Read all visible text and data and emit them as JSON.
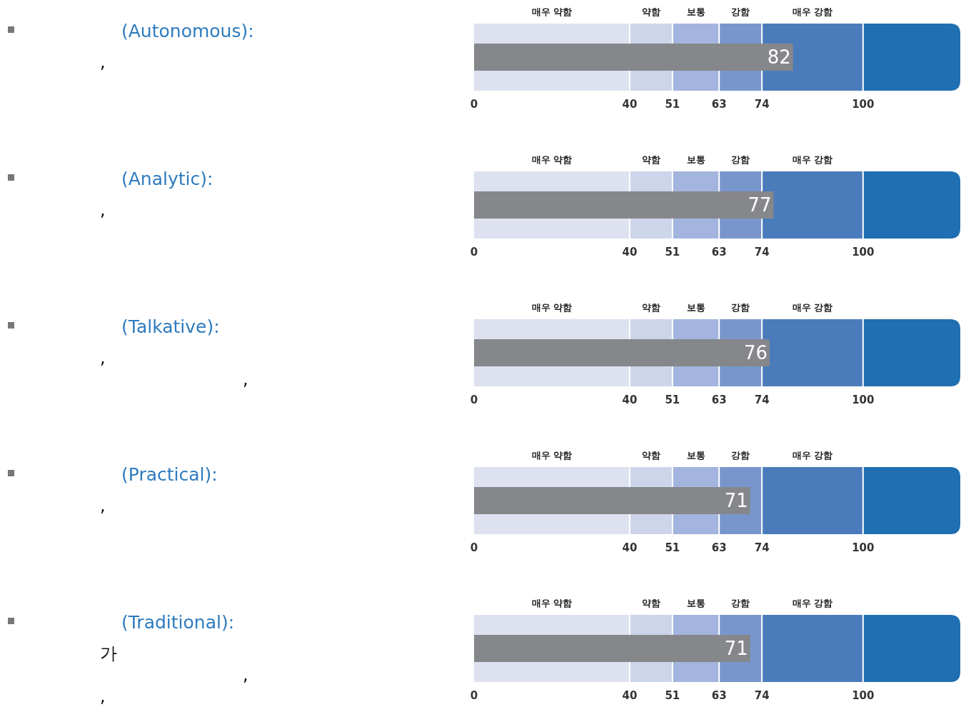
{
  "chart_data": [
    {
      "type": "bar",
      "orientation": "horizontal",
      "grid": "x",
      "annotations": [
        "(Autonomous):",
        ","
      ],
      "categories": [
        null
      ],
      "values": [
        82
      ],
      "color": "#85878b",
      "data_labels": true,
      "xlim": [
        0,
        125
      ],
      "xticks": [
        0,
        40,
        51,
        63,
        74,
        100
      ],
      "bands": [
        {
          "axis": "x",
          "from": 0,
          "to": 40,
          "label": "매우 약함",
          "color": "#dde1f0"
        },
        {
          "axis": "x",
          "from": 40,
          "to": 51,
          "label": "약함",
          "color": "#ccd5ea"
        },
        {
          "axis": "x",
          "from": 51,
          "to": 63,
          "label": "보통",
          "color": "#a3b5de"
        },
        {
          "axis": "x",
          "from": 63,
          "to": 74,
          "label": "강함",
          "color": "#7896cc"
        },
        {
          "axis": "x",
          "from": 74,
          "to": 100,
          "label": "매우 강함",
          "color": "#4a7cbc"
        },
        {
          "axis": "x",
          "from": 100,
          "to": 125,
          "label": null,
          "color": "#1f6fb2"
        }
      ]
    },
    {
      "type": "bar",
      "orientation": "horizontal",
      "grid": "x",
      "annotations": [
        "(Analytic):",
        ","
      ],
      "categories": [
        null
      ],
      "values": [
        77
      ],
      "color": "#85878b",
      "data_labels": true,
      "xlim": [
        0,
        125
      ],
      "xticks": [
        0,
        40,
        51,
        63,
        74,
        100
      ],
      "bands": [
        {
          "axis": "x",
          "from": 0,
          "to": 40,
          "label": "매우 약함",
          "color": "#dde1f0"
        },
        {
          "axis": "x",
          "from": 40,
          "to": 51,
          "label": "약함",
          "color": "#ccd5ea"
        },
        {
          "axis": "x",
          "from": 51,
          "to": 63,
          "label": "보통",
          "color": "#a3b5de"
        },
        {
          "axis": "x",
          "from": 63,
          "to": 74,
          "label": "강함",
          "color": "#7896cc"
        },
        {
          "axis": "x",
          "from": 74,
          "to": 100,
          "label": "매우 강함",
          "color": "#4a7cbc"
        },
        {
          "axis": "x",
          "from": 100,
          "to": 125,
          "label": null,
          "color": "#1f6fb2"
        }
      ]
    },
    {
      "type": "bar",
      "orientation": "horizontal",
      "grid": "x",
      "annotations": [
        "(Talkative):",
        ",",
        ","
      ],
      "categories": [
        null
      ],
      "values": [
        76
      ],
      "color": "#85878b",
      "data_labels": true,
      "xlim": [
        0,
        125
      ],
      "xticks": [
        0,
        40,
        51,
        63,
        74,
        100
      ],
      "bands": [
        {
          "axis": "x",
          "from": 0,
          "to": 40,
          "label": "매우 약함",
          "color": "#dde1f0"
        },
        {
          "axis": "x",
          "from": 40,
          "to": 51,
          "label": "약함",
          "color": "#ccd5ea"
        },
        {
          "axis": "x",
          "from": 51,
          "to": 63,
          "label": "보통",
          "color": "#a3b5de"
        },
        {
          "axis": "x",
          "from": 63,
          "to": 74,
          "label": "강함",
          "color": "#7896cc"
        },
        {
          "axis": "x",
          "from": 74,
          "to": 100,
          "label": "매우 강함",
          "color": "#4a7cbc"
        },
        {
          "axis": "x",
          "from": 100,
          "to": 125,
          "label": null,
          "color": "#1f6fb2"
        }
      ]
    },
    {
      "type": "bar",
      "orientation": "horizontal",
      "grid": "x",
      "annotations": [
        "(Practical):",
        ","
      ],
      "categories": [
        null
      ],
      "values": [
        71
      ],
      "color": "#85878b",
      "data_labels": true,
      "xlim": [
        0,
        125
      ],
      "xticks": [
        0,
        40,
        51,
        63,
        74,
        100
      ],
      "bands": [
        {
          "axis": "x",
          "from": 0,
          "to": 40,
          "label": "매우 약함",
          "color": "#dde1f0"
        },
        {
          "axis": "x",
          "from": 40,
          "to": 51,
          "label": "약함",
          "color": "#ccd5ea"
        },
        {
          "axis": "x",
          "from": 51,
          "to": 63,
          "label": "보통",
          "color": "#a3b5de"
        },
        {
          "axis": "x",
          "from": 63,
          "to": 74,
          "label": "강함",
          "color": "#7896cc"
        },
        {
          "axis": "x",
          "from": 74,
          "to": 100,
          "label": "매우 강함",
          "color": "#4a7cbc"
        },
        {
          "axis": "x",
          "from": 100,
          "to": 125,
          "label": null,
          "color": "#1f6fb2"
        }
      ]
    },
    {
      "type": "bar",
      "orientation": "horizontal",
      "grid": "x",
      "annotations": [
        "(Traditional):",
        "가",
        ",",
        ","
      ],
      "categories": [
        null
      ],
      "values": [
        71
      ],
      "color": "#85878b",
      "data_labels": true,
      "xlim": [
        0,
        125
      ],
      "xticks": [
        0,
        40,
        51,
        63,
        74,
        100
      ],
      "bands": [
        {
          "axis": "x",
          "from": 0,
          "to": 40,
          "label": "매우 약함",
          "color": "#dde1f0"
        },
        {
          "axis": "x",
          "from": 40,
          "to": 51,
          "label": "약함",
          "color": "#ccd5ea"
        },
        {
          "axis": "x",
          "from": 51,
          "to": 63,
          "label": "보통",
          "color": "#a3b5de"
        },
        {
          "axis": "x",
          "from": 63,
          "to": 74,
          "label": "강함",
          "color": "#7896cc"
        },
        {
          "axis": "x",
          "from": 74,
          "to": 100,
          "label": "매우 강함",
          "color": "#4a7cbc"
        },
        {
          "axis": "x",
          "from": 100,
          "to": 125,
          "label": null,
          "color": "#1f6fb2"
        }
      ]
    }
  ]
}
